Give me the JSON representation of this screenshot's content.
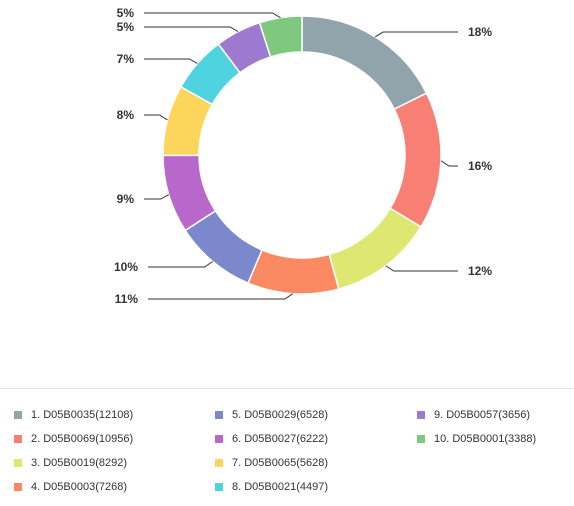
{
  "chart_data": {
    "type": "pie",
    "style": "donut",
    "slices": [
      {
        "label": "1. D05B0035(12108)",
        "value": 12108,
        "percent_label": "18%",
        "color": "#91a4ab"
      },
      {
        "label": "2. D05B0069(10956)",
        "value": 10956,
        "percent_label": "16%",
        "color": "#f87f73"
      },
      {
        "label": "3. D05B0019(8292)",
        "value": 8292,
        "percent_label": "12%",
        "color": "#dde772"
      },
      {
        "label": "4. D05B0003(7268)",
        "value": 7268,
        "percent_label": "11%",
        "color": "#fb8a62"
      },
      {
        "label": "5. D05B0029(6528)",
        "value": 6528,
        "percent_label": "10%",
        "color": "#7b88cb"
      },
      {
        "label": "6. D05B0027(6222)",
        "value": 6222,
        "percent_label": "9%",
        "color": "#b868cb"
      },
      {
        "label": "7. D05B0065(5628)",
        "value": 5628,
        "percent_label": "8%",
        "color": "#fdd55a"
      },
      {
        "label": "8. D05B0021(4497)",
        "value": 4497,
        "percent_label": "7%",
        "color": "#4fd3de"
      },
      {
        "label": "9. D05B0057(3656)",
        "value": 3656,
        "percent_label": "5%",
        "color": "#9d79cf"
      },
      {
        "label": "10. D05B0001(3388)",
        "value": 3388,
        "percent_label": "5%",
        "color": "#7fc97f"
      }
    ],
    "legend_position": "bottom"
  }
}
